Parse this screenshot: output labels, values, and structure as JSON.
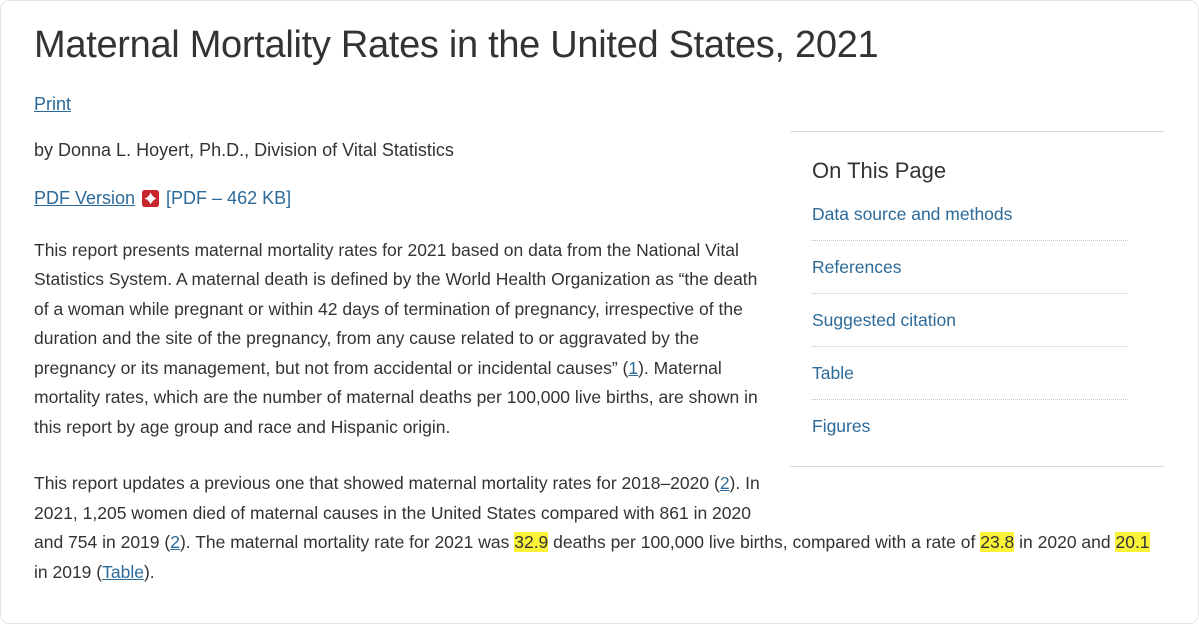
{
  "colors": {
    "link": "#2c6a99",
    "highlight": "#fbf338",
    "pdf-red": "#c9252d",
    "text": "#333333",
    "divider": "#d9d9d9"
  },
  "page": {
    "title": "Maternal Mortality Rates in the United States, 2021",
    "print_label": "Print",
    "byline": "by Donna L. Hoyert, Ph.D., Division of Vital Statistics",
    "pdf_link_label": "PDF Version",
    "pdf_icon": "pdf-icon",
    "pdf_size_label": "[PDF – 462 KB]"
  },
  "on_this_page": {
    "heading": "On This Page",
    "links": [
      "Data source and methods",
      "References",
      "Suggested citation",
      "Table",
      "Figures"
    ]
  },
  "paragraphs": [
    {
      "segments": [
        {
          "t": "This report presents maternal mortality rates for 2021 based on data from the National Vital Statistics System. A maternal death is defined by the World Health Organization as “the death of a woman while pregnant or within 42 days of termination of pregnancy, irrespective of the duration and the site of the pregnancy, from any cause related to or aggravated by the pregnancy or its management, but not from accidental or incidental causes” ("
        },
        {
          "t": "1",
          "kind": "link"
        },
        {
          "t": "). Maternal mortality rates, which are the number of maternal deaths per 100,000 live births, are shown in this report by age group and race and Hispanic origin."
        }
      ]
    },
    {
      "segments": [
        {
          "t": "This report updates a previous one that showed maternal mortality rates for 2018–2020 ("
        },
        {
          "t": "2",
          "kind": "link"
        },
        {
          "t": "). In 2021, 1,205 women died of maternal causes in the United States compared with 861 in 2020 and 754 in 2019 ("
        },
        {
          "t": "2",
          "kind": "link"
        },
        {
          "t": "). The maternal mortality rate for 2021 was "
        },
        {
          "t": "32.9",
          "kind": "highlight"
        },
        {
          "t": " deaths per 100,000 live births, compared with a rate of "
        },
        {
          "t": "23.8",
          "kind": "highlight"
        },
        {
          "t": " in 2020 and "
        },
        {
          "t": "20.1",
          "kind": "highlight"
        },
        {
          "t": " in 2019 ("
        },
        {
          "t": "Table",
          "kind": "link"
        },
        {
          "t": ")."
        }
      ]
    }
  ]
}
